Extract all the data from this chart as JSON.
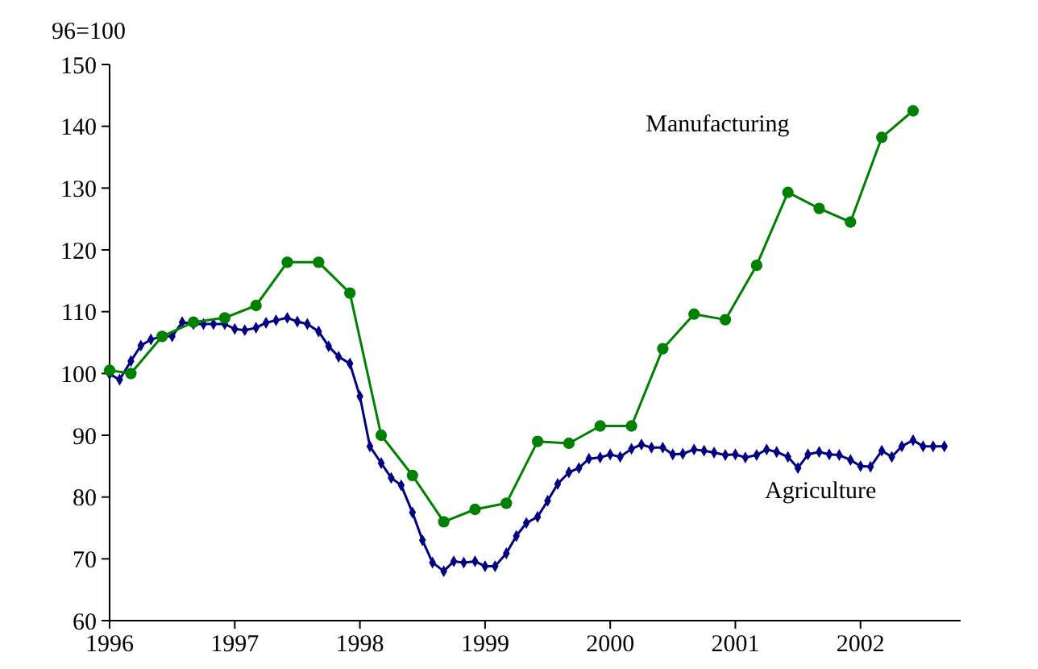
{
  "chart_data": {
    "type": "line",
    "ylabel": "96=100",
    "xlim": [
      1996,
      2002.8
    ],
    "xticks": [
      1996,
      1997,
      1998,
      1999,
      2000,
      2001,
      2002
    ],
    "ylim": [
      60,
      150
    ],
    "yticks": [
      60,
      70,
      80,
      90,
      100,
      110,
      120,
      130,
      140,
      150
    ],
    "grid": false,
    "line_style": "solid",
    "series": [
      {
        "name": "Manufacturing",
        "color": "#008000",
        "marker": "circle",
        "x": [
          1996,
          1996.17,
          1996.42,
          1996.67,
          1996.92,
          1997.17,
          1997.42,
          1997.67,
          1997.92,
          1998.17,
          1998.42,
          1998.67,
          1998.92,
          1999.17,
          1999.42,
          1999.67,
          1999.92,
          2000.17,
          2000.42,
          2000.67,
          2000.92,
          2001.17,
          2001.42,
          2001.67,
          2001.92,
          2002.17,
          2002.42
        ],
        "values": [
          100.5,
          100,
          106,
          108.3,
          109,
          111,
          118,
          118,
          113,
          90,
          83.5,
          76,
          78,
          79,
          89,
          88.7,
          91.5,
          91.5,
          104,
          109.6,
          108.7,
          117.5,
          129.3,
          126.7,
          124.5,
          138.2,
          142.5
        ]
      },
      {
        "name": "Agriculture",
        "color": "#000080",
        "marker": "diamond",
        "x": [
          1996,
          1996.08,
          1996.17,
          1996.25,
          1996.33,
          1996.42,
          1996.5,
          1996.58,
          1996.67,
          1996.75,
          1996.83,
          1996.92,
          1997,
          1997.08,
          1997.17,
          1997.25,
          1997.33,
          1997.42,
          1997.5,
          1997.58,
          1997.67,
          1997.75,
          1997.83,
          1997.92,
          1998,
          1998.08,
          1998.17,
          1998.25,
          1998.33,
          1998.42,
          1998.5,
          1998.58,
          1998.67,
          1998.75,
          1998.83,
          1998.92,
          1999,
          1999.08,
          1999.17,
          1999.25,
          1999.33,
          1999.42,
          1999.5,
          1999.58,
          1999.67,
          1999.75,
          1999.83,
          1999.92,
          2000,
          2000.08,
          2000.17,
          2000.25,
          2000.33,
          2000.42,
          2000.5,
          2000.58,
          2000.67,
          2000.75,
          2000.83,
          2000.92,
          2001,
          2001.08,
          2001.17,
          2001.25,
          2001.33,
          2001.42,
          2001.5,
          2001.58,
          2001.67,
          2001.75,
          2001.83,
          2001.92,
          2002,
          2002.08,
          2002.17,
          2002.25,
          2002.33,
          2002.42,
          2002.5,
          2002.58,
          2002.67
        ],
        "values": [
          99.9,
          99,
          102,
          104.5,
          105.5,
          106,
          106,
          108.3,
          108,
          108,
          108,
          108,
          107.2,
          107,
          107.4,
          108.2,
          108.6,
          109,
          108.4,
          108,
          106.8,
          104.4,
          102.7,
          101.6,
          96.3,
          88.2,
          85.5,
          83.1,
          81.9,
          77.5,
          73,
          69.4,
          68,
          69.6,
          69.4,
          69.6,
          68.8,
          68.8,
          70.9,
          73.7,
          75.8,
          76.8,
          79.4,
          82.1,
          84,
          84.7,
          86.2,
          86.4,
          86.9,
          86.5,
          87.8,
          88.5,
          88,
          88,
          86.9,
          87,
          87.7,
          87.5,
          87.2,
          86.8,
          86.9,
          86.4,
          86.8,
          87.7,
          87.3,
          86.5,
          84.7,
          86.9,
          87.3,
          86.9,
          86.8,
          86,
          85,
          84.9,
          87.5,
          86.5,
          88.2,
          89.2,
          88.2,
          88.2,
          88.2
        ]
      }
    ]
  }
}
